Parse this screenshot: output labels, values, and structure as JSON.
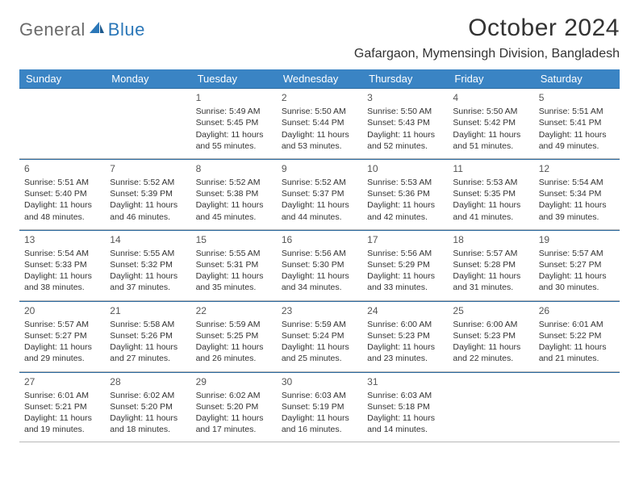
{
  "logo": {
    "text1": "General",
    "text2": "Blue"
  },
  "title": "October 2024",
  "location": "Gafargaon, Mymensingh Division, Bangladesh",
  "colors": {
    "header_bg": "#3a84c4",
    "header_text": "#ffffff",
    "week_border_top": "#2b6aa0",
    "week_border_bottom": "#b8b8b8",
    "logo_gray": "#6b6b6b",
    "logo_blue": "#2b77b8",
    "body_text": "#333333"
  },
  "day_names": [
    "Sunday",
    "Monday",
    "Tuesday",
    "Wednesday",
    "Thursday",
    "Friday",
    "Saturday"
  ],
  "weeks": [
    [
      {
        "empty": true
      },
      {
        "empty": true
      },
      {
        "day": "1",
        "sunrise": "Sunrise: 5:49 AM",
        "sunset": "Sunset: 5:45 PM",
        "daylight": "Daylight: 11 hours and 55 minutes."
      },
      {
        "day": "2",
        "sunrise": "Sunrise: 5:50 AM",
        "sunset": "Sunset: 5:44 PM",
        "daylight": "Daylight: 11 hours and 53 minutes."
      },
      {
        "day": "3",
        "sunrise": "Sunrise: 5:50 AM",
        "sunset": "Sunset: 5:43 PM",
        "daylight": "Daylight: 11 hours and 52 minutes."
      },
      {
        "day": "4",
        "sunrise": "Sunrise: 5:50 AM",
        "sunset": "Sunset: 5:42 PM",
        "daylight": "Daylight: 11 hours and 51 minutes."
      },
      {
        "day": "5",
        "sunrise": "Sunrise: 5:51 AM",
        "sunset": "Sunset: 5:41 PM",
        "daylight": "Daylight: 11 hours and 49 minutes."
      }
    ],
    [
      {
        "day": "6",
        "sunrise": "Sunrise: 5:51 AM",
        "sunset": "Sunset: 5:40 PM",
        "daylight": "Daylight: 11 hours and 48 minutes."
      },
      {
        "day": "7",
        "sunrise": "Sunrise: 5:52 AM",
        "sunset": "Sunset: 5:39 PM",
        "daylight": "Daylight: 11 hours and 46 minutes."
      },
      {
        "day": "8",
        "sunrise": "Sunrise: 5:52 AM",
        "sunset": "Sunset: 5:38 PM",
        "daylight": "Daylight: 11 hours and 45 minutes."
      },
      {
        "day": "9",
        "sunrise": "Sunrise: 5:52 AM",
        "sunset": "Sunset: 5:37 PM",
        "daylight": "Daylight: 11 hours and 44 minutes."
      },
      {
        "day": "10",
        "sunrise": "Sunrise: 5:53 AM",
        "sunset": "Sunset: 5:36 PM",
        "daylight": "Daylight: 11 hours and 42 minutes."
      },
      {
        "day": "11",
        "sunrise": "Sunrise: 5:53 AM",
        "sunset": "Sunset: 5:35 PM",
        "daylight": "Daylight: 11 hours and 41 minutes."
      },
      {
        "day": "12",
        "sunrise": "Sunrise: 5:54 AM",
        "sunset": "Sunset: 5:34 PM",
        "daylight": "Daylight: 11 hours and 39 minutes."
      }
    ],
    [
      {
        "day": "13",
        "sunrise": "Sunrise: 5:54 AM",
        "sunset": "Sunset: 5:33 PM",
        "daylight": "Daylight: 11 hours and 38 minutes."
      },
      {
        "day": "14",
        "sunrise": "Sunrise: 5:55 AM",
        "sunset": "Sunset: 5:32 PM",
        "daylight": "Daylight: 11 hours and 37 minutes."
      },
      {
        "day": "15",
        "sunrise": "Sunrise: 5:55 AM",
        "sunset": "Sunset: 5:31 PM",
        "daylight": "Daylight: 11 hours and 35 minutes."
      },
      {
        "day": "16",
        "sunrise": "Sunrise: 5:56 AM",
        "sunset": "Sunset: 5:30 PM",
        "daylight": "Daylight: 11 hours and 34 minutes."
      },
      {
        "day": "17",
        "sunrise": "Sunrise: 5:56 AM",
        "sunset": "Sunset: 5:29 PM",
        "daylight": "Daylight: 11 hours and 33 minutes."
      },
      {
        "day": "18",
        "sunrise": "Sunrise: 5:57 AM",
        "sunset": "Sunset: 5:28 PM",
        "daylight": "Daylight: 11 hours and 31 minutes."
      },
      {
        "day": "19",
        "sunrise": "Sunrise: 5:57 AM",
        "sunset": "Sunset: 5:27 PM",
        "daylight": "Daylight: 11 hours and 30 minutes."
      }
    ],
    [
      {
        "day": "20",
        "sunrise": "Sunrise: 5:57 AM",
        "sunset": "Sunset: 5:27 PM",
        "daylight": "Daylight: 11 hours and 29 minutes."
      },
      {
        "day": "21",
        "sunrise": "Sunrise: 5:58 AM",
        "sunset": "Sunset: 5:26 PM",
        "daylight": "Daylight: 11 hours and 27 minutes."
      },
      {
        "day": "22",
        "sunrise": "Sunrise: 5:59 AM",
        "sunset": "Sunset: 5:25 PM",
        "daylight": "Daylight: 11 hours and 26 minutes."
      },
      {
        "day": "23",
        "sunrise": "Sunrise: 5:59 AM",
        "sunset": "Sunset: 5:24 PM",
        "daylight": "Daylight: 11 hours and 25 minutes."
      },
      {
        "day": "24",
        "sunrise": "Sunrise: 6:00 AM",
        "sunset": "Sunset: 5:23 PM",
        "daylight": "Daylight: 11 hours and 23 minutes."
      },
      {
        "day": "25",
        "sunrise": "Sunrise: 6:00 AM",
        "sunset": "Sunset: 5:23 PM",
        "daylight": "Daylight: 11 hours and 22 minutes."
      },
      {
        "day": "26",
        "sunrise": "Sunrise: 6:01 AM",
        "sunset": "Sunset: 5:22 PM",
        "daylight": "Daylight: 11 hours and 21 minutes."
      }
    ],
    [
      {
        "day": "27",
        "sunrise": "Sunrise: 6:01 AM",
        "sunset": "Sunset: 5:21 PM",
        "daylight": "Daylight: 11 hours and 19 minutes."
      },
      {
        "day": "28",
        "sunrise": "Sunrise: 6:02 AM",
        "sunset": "Sunset: 5:20 PM",
        "daylight": "Daylight: 11 hours and 18 minutes."
      },
      {
        "day": "29",
        "sunrise": "Sunrise: 6:02 AM",
        "sunset": "Sunset: 5:20 PM",
        "daylight": "Daylight: 11 hours and 17 minutes."
      },
      {
        "day": "30",
        "sunrise": "Sunrise: 6:03 AM",
        "sunset": "Sunset: 5:19 PM",
        "daylight": "Daylight: 11 hours and 16 minutes."
      },
      {
        "day": "31",
        "sunrise": "Sunrise: 6:03 AM",
        "sunset": "Sunset: 5:18 PM",
        "daylight": "Daylight: 11 hours and 14 minutes."
      },
      {
        "empty": true
      },
      {
        "empty": true
      }
    ]
  ]
}
